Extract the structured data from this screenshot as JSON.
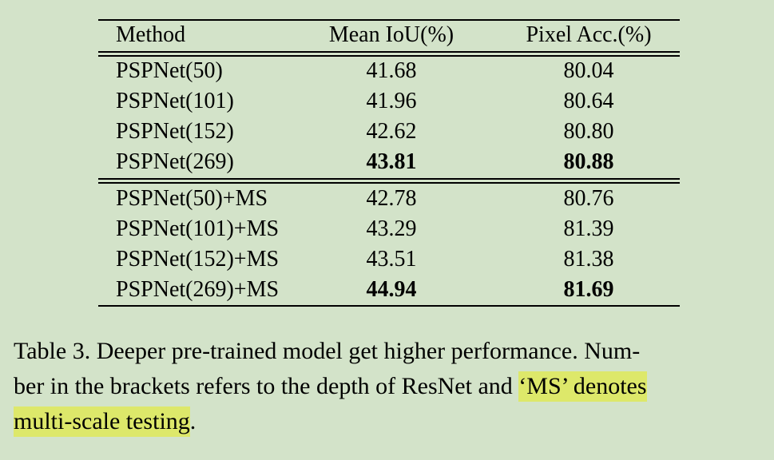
{
  "table": {
    "headers": [
      "Method",
      "Mean IoU(%)",
      "Pixel Acc.(%)"
    ],
    "group1": [
      {
        "method": "PSPNet(50)",
        "miou": "41.68",
        "pix": "80.04",
        "bold": false
      },
      {
        "method": "PSPNet(101)",
        "miou": "41.96",
        "pix": "80.64",
        "bold": false
      },
      {
        "method": "PSPNet(152)",
        "miou": "42.62",
        "pix": "80.80",
        "bold": false
      },
      {
        "method": "PSPNet(269)",
        "miou": "43.81",
        "pix": "80.88",
        "bold": true
      }
    ],
    "group2": [
      {
        "method": "PSPNet(50)+MS",
        "miou": "42.78",
        "pix": "80.76",
        "bold": false
      },
      {
        "method": "PSPNet(101)+MS",
        "miou": "43.29",
        "pix": "81.39",
        "bold": false
      },
      {
        "method": "PSPNet(152)+MS",
        "miou": "43.51",
        "pix": "81.38",
        "bold": false
      },
      {
        "method": "PSPNet(269)+MS",
        "miou": "44.94",
        "pix": "81.69",
        "bold": true
      }
    ]
  },
  "caption": {
    "line1": "Table 3. Deeper pre-trained model get higher performance. Num-",
    "line2_plain": "ber in the brackets refers to the depth of ResNet and ",
    "line2_highlight": "‘MS’ denotes",
    "line3_highlight": "multi-scale testing",
    "line3_plain": "."
  },
  "colors": {
    "background": "#d3e3c9",
    "highlight": "#dde86a"
  }
}
